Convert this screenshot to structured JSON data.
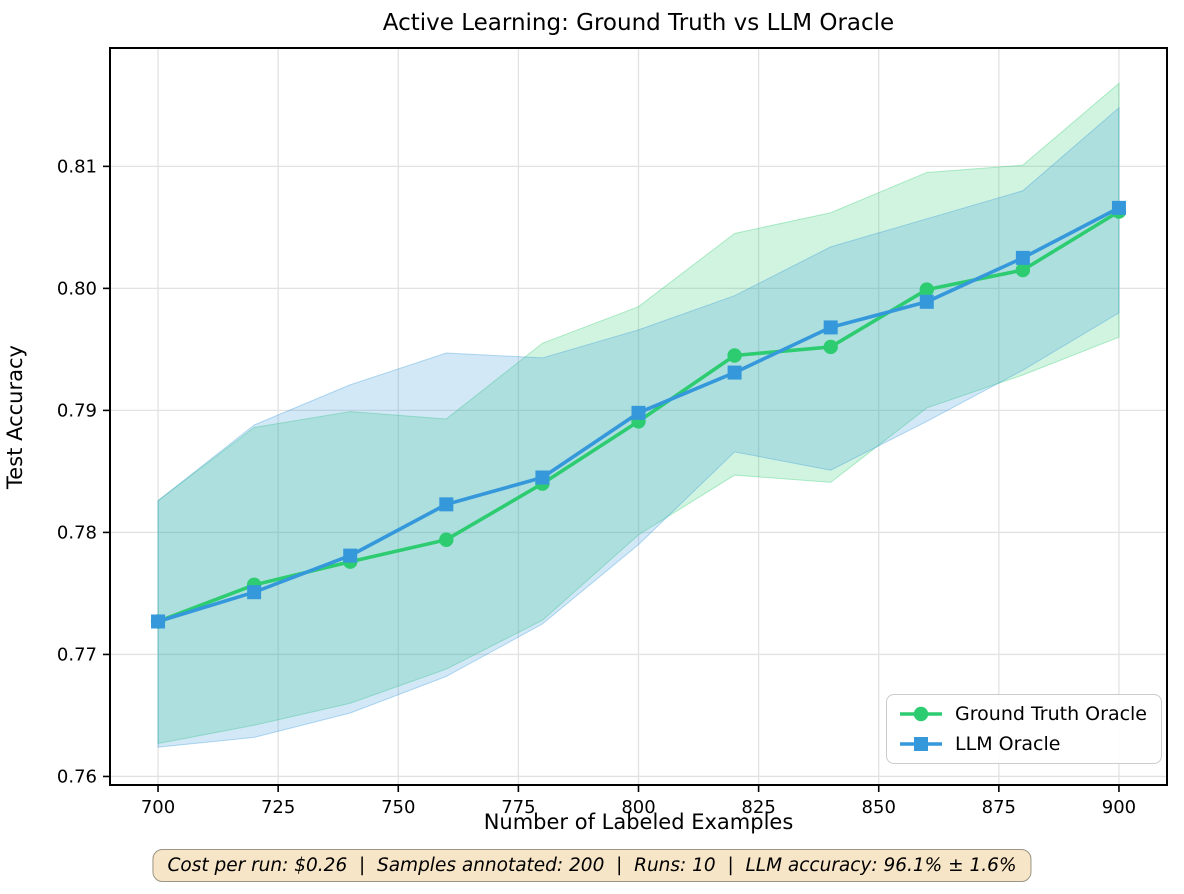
{
  "chart_data": {
    "type": "line",
    "title": "Active Learning: Ground Truth vs LLM Oracle",
    "xlabel": "Number of Labeled Examples",
    "ylabel": "Test Accuracy",
    "x": [
      700,
      720,
      740,
      760,
      780,
      800,
      820,
      840,
      860,
      880,
      900
    ],
    "xlim": [
      690,
      910
    ],
    "ylim": [
      0.7593,
      0.8197
    ],
    "xticks": [
      700,
      725,
      750,
      775,
      800,
      825,
      850,
      875,
      900
    ],
    "yticks": [
      0.76,
      0.77,
      0.78,
      0.79,
      0.8,
      0.81
    ],
    "grid": true,
    "legend_position": "lower right",
    "series": [
      {
        "name": "Ground Truth Oracle",
        "color": "#2ecc71",
        "marker": "circle",
        "values": [
          0.7727,
          0.7757,
          0.7776,
          0.7794,
          0.784,
          0.7891,
          0.7945,
          0.7952,
          0.7999,
          0.8015,
          0.8063
        ],
        "band_upper": [
          0.7826,
          0.7886,
          0.7899,
          0.7893,
          0.7955,
          0.7985,
          0.8045,
          0.8062,
          0.8095,
          0.8101,
          0.8168
        ],
        "band_lower": [
          0.7627,
          0.7642,
          0.766,
          0.7688,
          0.7728,
          0.7798,
          0.7847,
          0.7841,
          0.7902,
          0.7929,
          0.796
        ]
      },
      {
        "name": "LLM Oracle",
        "color": "#3498db",
        "marker": "square",
        "values": [
          0.7727,
          0.7751,
          0.7781,
          0.7823,
          0.7845,
          0.7898,
          0.7931,
          0.7968,
          0.7989,
          0.8025,
          0.8066
        ],
        "band_upper": [
          0.7826,
          0.7888,
          0.7921,
          0.7947,
          0.7943,
          0.7966,
          0.7994,
          0.8034,
          0.8057,
          0.808,
          0.8148
        ],
        "band_lower": [
          0.7624,
          0.7632,
          0.7652,
          0.7682,
          0.7725,
          0.779,
          0.7866,
          0.7851,
          0.7891,
          0.7933,
          0.798
        ]
      }
    ]
  },
  "footer": {
    "text": "Cost per run: $0.26  |  Samples annotated: 200  |  Runs: 10  |  LLM accuracy: 96.1% ± 1.6%"
  },
  "style": {
    "grid_color": "#e2e2e2",
    "spine_color": "#000000",
    "background": "#ffffff",
    "band_opacity": 0.22,
    "wheat_box": "#f7e5c7"
  }
}
